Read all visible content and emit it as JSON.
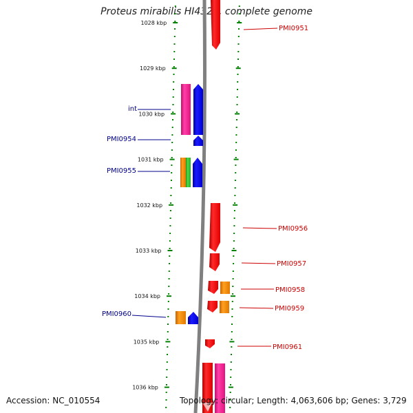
{
  "title": "Proteus mirabilis HI4320, complete genome",
  "footer": {
    "accession": "Accession: NC_010554",
    "topology": "Topology: circular; Length: 4,063,606 bp; Genes: 3,729"
  },
  "colors": {
    "ruler_dots": "#008000",
    "backbone": "#808080",
    "red": "#ff0000",
    "blue": "#0000ff",
    "pink": "#ff1493",
    "orange": "#ff8c00",
    "green": "#32cd32",
    "label_left": "#00008b",
    "label_right": "#cc0000"
  },
  "ruler": [
    {
      "kbp": 1028,
      "label": "1028 kbp"
    },
    {
      "kbp": 1029,
      "label": "1029 kbp"
    },
    {
      "kbp": 1030,
      "label": "1030 kbp"
    },
    {
      "kbp": 1031,
      "label": "1031 kbp"
    },
    {
      "kbp": 1032,
      "label": "1032 kbp"
    },
    {
      "kbp": 1033,
      "label": "1033 kbp"
    },
    {
      "kbp": 1034,
      "label": "1034 kbp"
    },
    {
      "kbp": 1035,
      "label": "1035 kbp"
    },
    {
      "kbp": 1036,
      "label": "1036 kbp"
    }
  ],
  "gene_labels": [
    {
      "name": "int",
      "strand": "left"
    },
    {
      "name": "PMI0954",
      "strand": "left"
    },
    {
      "name": "PMI0955",
      "strand": "left"
    },
    {
      "name": "PMI0960",
      "strand": "left"
    },
    {
      "name": "PMI0951",
      "strand": "right"
    },
    {
      "name": "PMI0956",
      "strand": "right"
    },
    {
      "name": "PMI0957",
      "strand": "right"
    },
    {
      "name": "PMI0958",
      "strand": "right"
    },
    {
      "name": "PMI0959",
      "strand": "right"
    },
    {
      "name": "PMI0961",
      "strand": "right"
    }
  ]
}
